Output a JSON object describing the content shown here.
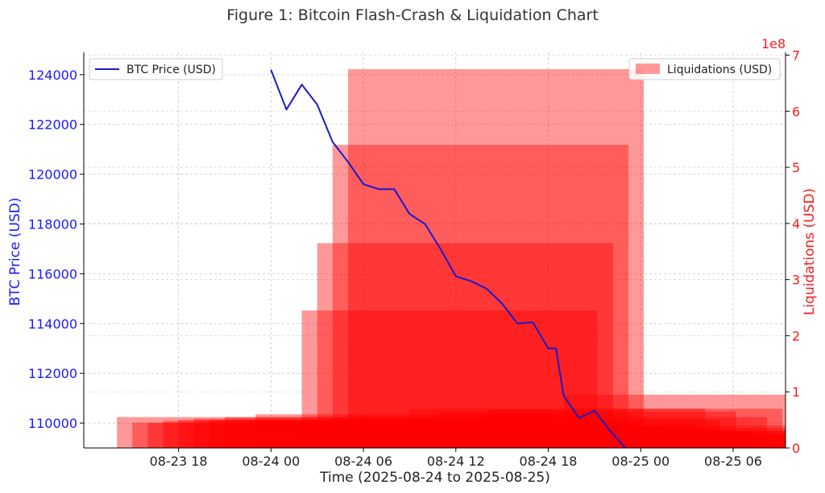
{
  "chart_data": {
    "type": "bar",
    "title": "Figure 1: Bitcoin Flash-Crash & Liquidation Chart",
    "xlabel": "Time (2025-08-24 to 2025-08-25)",
    "x_tick_labels": [
      "08-23 18",
      "08-24 00",
      "08-24 06",
      "08-24 12",
      "08-24 18",
      "08-25 00",
      "08-25 06"
    ],
    "x_tick_hours": [
      0,
      6,
      12,
      18,
      24,
      30,
      36
    ],
    "x_range_hours": [
      -6.15,
      39.4
    ],
    "left_axis": {
      "label": "BTC Price (USD)",
      "ticks": [
        110000,
        112000,
        114000,
        116000,
        118000,
        120000,
        122000,
        124000
      ],
      "range": [
        109000,
        124900
      ],
      "color": "#1a1aff"
    },
    "right_axis": {
      "label": "Liquidations (USD)",
      "multiplier": "1e8",
      "ticks": [
        0,
        1,
        2,
        3,
        4,
        5,
        6,
        7
      ],
      "range": [
        0,
        7.05
      ],
      "color": "#ff1a1a"
    },
    "legend_left": {
      "label": "BTC Price (USD)",
      "position": "upper-left"
    },
    "legend_right": {
      "label": "Liquidations (USD)",
      "position": "upper-right"
    },
    "grid": true,
    "series": [
      {
        "name": "BTC Price (USD)",
        "kind": "line",
        "axis": "left",
        "color": "#1a1acc",
        "x_hours": [
          6.0,
          7.0,
          8.0,
          9.0,
          10.0,
          11.0,
          12.0,
          13.0,
          14.0,
          15.0,
          16.0,
          17.0,
          18.0,
          19.0,
          20.0,
          21.0,
          22.0,
          23.0,
          24.0,
          24.5,
          25.0,
          26.0,
          27.0,
          28.0,
          29.0
        ],
        "values": [
          124200,
          122600,
          123600,
          122800,
          121300,
          120500,
          119600,
          119400,
          119400,
          118400,
          118000,
          117000,
          115900,
          115700,
          115400,
          114800,
          114000,
          114050,
          113000,
          113000,
          111100,
          110200,
          110500,
          109700,
          109000
        ]
      },
      {
        "name": "Liquidations (USD)",
        "kind": "bar",
        "axis": "right",
        "color": "#ff0000",
        "opacity": 0.4,
        "bars": [
          {
            "start_h": 11.0,
            "end_h": 30.2,
            "value": 6.75
          },
          {
            "start_h": 10.0,
            "end_h": 29.2,
            "value": 5.4
          },
          {
            "start_h": 9.0,
            "end_h": 28.2,
            "value": 3.65
          },
          {
            "start_h": 8.0,
            "end_h": 27.2,
            "value": 2.45
          },
          {
            "start_h": 20.0,
            "end_h": 39.2,
            "value": 0.7
          },
          {
            "start_h": 25.0,
            "end_h": 44.2,
            "value": 0.95
          },
          {
            "start_h": 17.0,
            "end_h": 36.2,
            "value": 0.65
          },
          {
            "start_h": 15.0,
            "end_h": 34.2,
            "value": 0.7
          },
          {
            "start_h": 3.0,
            "end_h": 22.2,
            "value": 0.55
          },
          {
            "start_h": 5.0,
            "end_h": 24.2,
            "value": 0.6
          },
          {
            "start_h": 1.0,
            "end_h": 20.2,
            "value": 0.52
          },
          {
            "start_h": 2.0,
            "end_h": 21.2,
            "value": 0.5
          },
          {
            "start_h": 0.0,
            "end_h": 19.2,
            "value": 0.5
          },
          {
            "start_h": -1.0,
            "end_h": 18.2,
            "value": 0.48
          },
          {
            "start_h": -2.0,
            "end_h": 17.2,
            "value": 0.45
          },
          {
            "start_h": -3.0,
            "end_h": 16.2,
            "value": 0.45
          },
          {
            "start_h": -4.0,
            "end_h": 15.2,
            "value": 0.55
          },
          {
            "start_h": 12.0,
            "end_h": 31.2,
            "value": 0.4
          },
          {
            "start_h": 13.0,
            "end_h": 32.2,
            "value": 0.35
          },
          {
            "start_h": 14.0,
            "end_h": 33.2,
            "value": 0.4
          },
          {
            "start_h": 16.0,
            "end_h": 35.2,
            "value": 0.5
          },
          {
            "start_h": 18.0,
            "end_h": 37.2,
            "value": 0.3
          },
          {
            "start_h": 19.0,
            "end_h": 38.2,
            "value": 0.55
          },
          {
            "start_h": 21.0,
            "end_h": 40.2,
            "value": 0.4
          },
          {
            "start_h": 22.0,
            "end_h": 41.2,
            "value": 0.3
          },
          {
            "start_h": 23.0,
            "end_h": 42.2,
            "value": 0.25
          },
          {
            "start_h": 26.0,
            "end_h": 45.2,
            "value": 0.35
          },
          {
            "start_h": 27.0,
            "end_h": 46.2,
            "value": 0.3
          },
          {
            "start_h": 28.0,
            "end_h": 47.2,
            "value": 0.25
          },
          {
            "start_h": 29.0,
            "end_h": 48.2,
            "value": 0.2
          }
        ]
      }
    ]
  }
}
